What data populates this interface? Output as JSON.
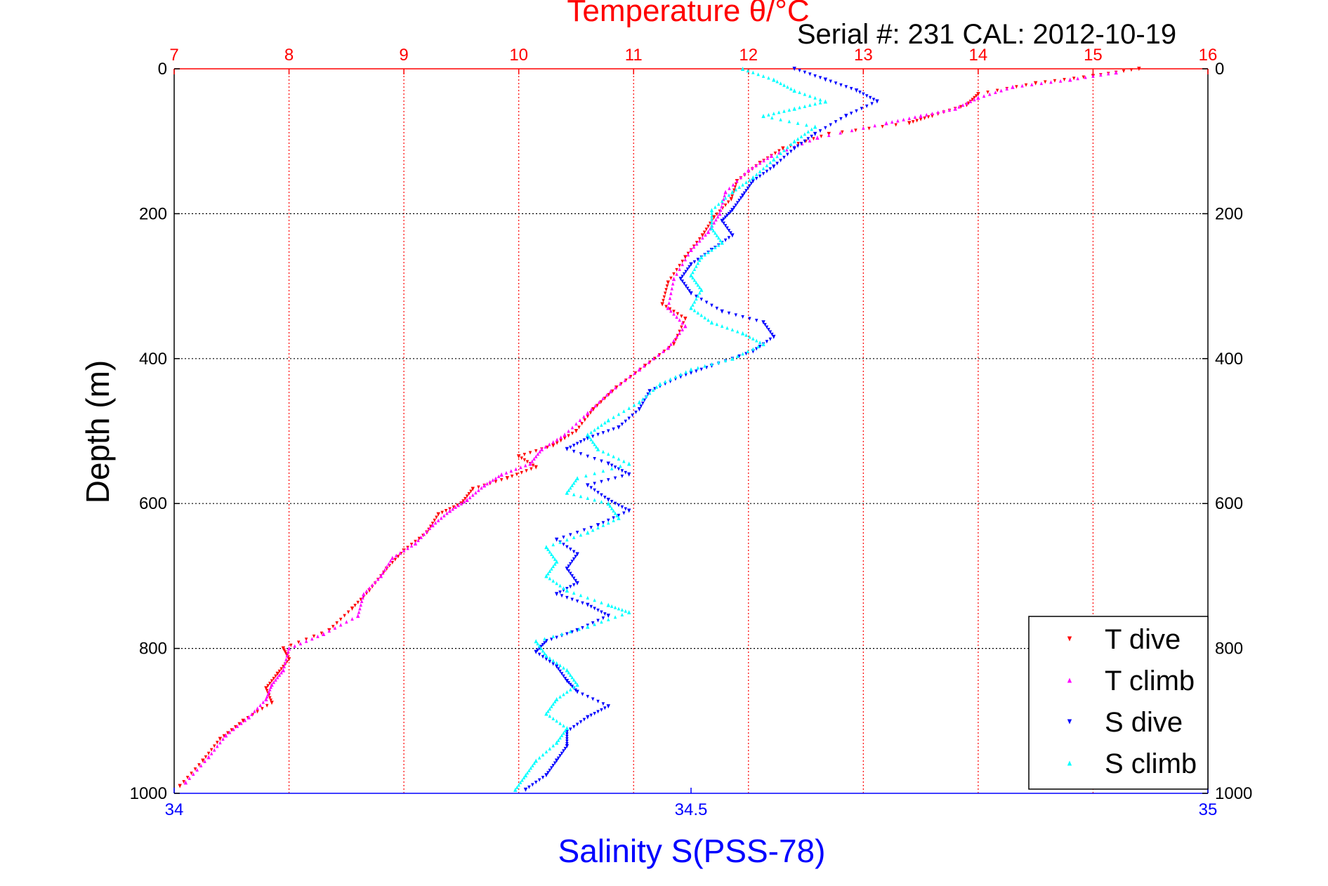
{
  "chart_data": {
    "type": "scatter",
    "title": "Temperature θ/°C",
    "subtitle": "Serial #: 231  CAL: 2012-10-19",
    "ylabel": "Depth (m)",
    "xlabel_bottom": "Salinity S(PSS-78)",
    "y_axis": {
      "range": [
        0,
        1000
      ],
      "reversed": true,
      "ticks": [
        0,
        200,
        400,
        600,
        800,
        1000
      ]
    },
    "x_axis_top": {
      "quantity": "temperature",
      "range": [
        7,
        16
      ],
      "ticks": [
        7,
        8,
        9,
        10,
        11,
        12,
        13,
        14,
        15,
        16
      ],
      "color": "#ff0000",
      "grid": true
    },
    "x_axis_bottom": {
      "quantity": "salinity",
      "range": [
        34,
        35
      ],
      "ticks": [
        34,
        34.5,
        35
      ],
      "tick_labels": [
        "34",
        "34.5",
        "35"
      ],
      "color": "#0000ff"
    },
    "grid": {
      "horizontal": true,
      "vertical_top_axis": true
    },
    "legend_position": "bottom-right",
    "series": [
      {
        "name": "T dive",
        "axis": "temperature",
        "color": "#ff0000",
        "marker": "triangle-down",
        "points": [
          [
            15.4,
            0
          ],
          [
            15.0,
            10
          ],
          [
            14.5,
            20
          ],
          [
            14.0,
            35
          ],
          [
            13.9,
            50
          ],
          [
            13.6,
            65
          ],
          [
            13.4,
            75
          ],
          [
            12.7,
            90
          ],
          [
            12.3,
            110
          ],
          [
            12.1,
            130
          ],
          [
            11.9,
            155
          ],
          [
            11.85,
            180
          ],
          [
            11.7,
            205
          ],
          [
            11.6,
            230
          ],
          [
            11.45,
            260
          ],
          [
            11.3,
            295
          ],
          [
            11.25,
            325
          ],
          [
            11.45,
            345
          ],
          [
            11.35,
            380
          ],
          [
            11.1,
            410
          ],
          [
            10.85,
            440
          ],
          [
            10.65,
            470
          ],
          [
            10.5,
            500
          ],
          [
            10.3,
            520
          ],
          [
            10.0,
            535
          ],
          [
            10.15,
            550
          ],
          [
            9.9,
            565
          ],
          [
            9.6,
            580
          ],
          [
            9.5,
            600
          ],
          [
            9.3,
            615
          ],
          [
            9.2,
            640
          ],
          [
            9.0,
            665
          ],
          [
            8.85,
            690
          ],
          [
            8.7,
            720
          ],
          [
            8.55,
            745
          ],
          [
            8.35,
            775
          ],
          [
            7.95,
            800
          ],
          [
            8.0,
            815
          ],
          [
            7.9,
            835
          ],
          [
            7.8,
            855
          ],
          [
            7.85,
            875
          ],
          [
            7.6,
            900
          ],
          [
            7.4,
            925
          ],
          [
            7.25,
            955
          ],
          [
            7.05,
            990
          ]
        ]
      },
      {
        "name": "T climb",
        "axis": "temperature",
        "color": "#ff00ff",
        "marker": "triangle-up",
        "points": [
          [
            15.2,
            5
          ],
          [
            14.8,
            15
          ],
          [
            14.3,
            25
          ],
          [
            14.0,
            40
          ],
          [
            13.8,
            55
          ],
          [
            13.5,
            65
          ],
          [
            13.2,
            75
          ],
          [
            12.6,
            95
          ],
          [
            12.2,
            120
          ],
          [
            12.0,
            140
          ],
          [
            11.8,
            170
          ],
          [
            11.75,
            200
          ],
          [
            11.65,
            225
          ],
          [
            11.5,
            250
          ],
          [
            11.35,
            290
          ],
          [
            11.3,
            330
          ],
          [
            11.45,
            355
          ],
          [
            11.3,
            385
          ],
          [
            11.05,
            415
          ],
          [
            10.8,
            445
          ],
          [
            10.6,
            475
          ],
          [
            10.4,
            505
          ],
          [
            10.2,
            525
          ],
          [
            10.1,
            545
          ],
          [
            9.85,
            560
          ],
          [
            9.7,
            575
          ],
          [
            9.55,
            595
          ],
          [
            9.4,
            610
          ],
          [
            9.25,
            630
          ],
          [
            9.1,
            655
          ],
          [
            8.9,
            675
          ],
          [
            8.8,
            700
          ],
          [
            8.65,
            725
          ],
          [
            8.6,
            755
          ],
          [
            8.3,
            780
          ],
          [
            8.0,
            800
          ],
          [
            7.95,
            830
          ],
          [
            7.85,
            850
          ],
          [
            7.8,
            870
          ],
          [
            7.65,
            895
          ],
          [
            7.45,
            920
          ],
          [
            7.3,
            950
          ],
          [
            7.1,
            985
          ]
        ]
      },
      {
        "name": "S dive",
        "axis": "salinity",
        "color": "#0000ff",
        "marker": "triangle-down",
        "points": [
          [
            34.6,
            0
          ],
          [
            34.63,
            15
          ],
          [
            34.66,
            30
          ],
          [
            34.68,
            45
          ],
          [
            34.65,
            65
          ],
          [
            34.62,
            90
          ],
          [
            34.6,
            110
          ],
          [
            34.58,
            135
          ],
          [
            34.56,
            155
          ],
          [
            34.55,
            175
          ],
          [
            34.54,
            195
          ],
          [
            34.53,
            210
          ],
          [
            34.54,
            230
          ],
          [
            34.52,
            250
          ],
          [
            34.5,
            270
          ],
          [
            34.49,
            290
          ],
          [
            34.5,
            310
          ],
          [
            34.53,
            335
          ],
          [
            34.57,
            350
          ],
          [
            34.58,
            370
          ],
          [
            34.56,
            390
          ],
          [
            34.52,
            410
          ],
          [
            34.49,
            425
          ],
          [
            34.46,
            445
          ],
          [
            34.45,
            470
          ],
          [
            34.43,
            495
          ],
          [
            34.4,
            510
          ],
          [
            34.38,
            525
          ],
          [
            34.42,
            545
          ],
          [
            34.44,
            560
          ],
          [
            34.4,
            575
          ],
          [
            34.42,
            595
          ],
          [
            34.44,
            610
          ],
          [
            34.41,
            630
          ],
          [
            34.37,
            650
          ],
          [
            34.39,
            670
          ],
          [
            34.38,
            690
          ],
          [
            34.39,
            710
          ],
          [
            34.37,
            725
          ],
          [
            34.4,
            740
          ],
          [
            34.42,
            755
          ],
          [
            34.39,
            775
          ],
          [
            34.36,
            790
          ],
          [
            34.35,
            805
          ],
          [
            34.37,
            825
          ],
          [
            34.38,
            845
          ],
          [
            34.39,
            860
          ],
          [
            34.42,
            880
          ],
          [
            34.4,
            895
          ],
          [
            34.38,
            915
          ],
          [
            34.38,
            935
          ],
          [
            34.37,
            955
          ],
          [
            34.36,
            975
          ],
          [
            34.34,
            995
          ]
        ]
      },
      {
        "name": "S climb",
        "axis": "salinity",
        "color": "#00ffff",
        "marker": "triangle-up",
        "points": [
          [
            34.55,
            0
          ],
          [
            34.58,
            15
          ],
          [
            34.6,
            30
          ],
          [
            34.63,
            45
          ],
          [
            34.6,
            55
          ],
          [
            34.57,
            65
          ],
          [
            34.62,
            80
          ],
          [
            34.6,
            100
          ],
          [
            34.58,
            125
          ],
          [
            34.56,
            150
          ],
          [
            34.54,
            170
          ],
          [
            34.52,
            195
          ],
          [
            34.52,
            220
          ],
          [
            34.53,
            240
          ],
          [
            34.51,
            260
          ],
          [
            34.5,
            285
          ],
          [
            34.51,
            305
          ],
          [
            34.5,
            330
          ],
          [
            34.52,
            350
          ],
          [
            34.55,
            365
          ],
          [
            34.57,
            380
          ],
          [
            34.54,
            400
          ],
          [
            34.5,
            415
          ],
          [
            34.47,
            435
          ],
          [
            34.45,
            460
          ],
          [
            34.42,
            485
          ],
          [
            34.4,
            505
          ],
          [
            34.41,
            525
          ],
          [
            34.44,
            545
          ],
          [
            34.39,
            565
          ],
          [
            34.38,
            585
          ],
          [
            34.42,
            600
          ],
          [
            34.43,
            620
          ],
          [
            34.4,
            640
          ],
          [
            34.36,
            660
          ],
          [
            34.37,
            680
          ],
          [
            34.36,
            700
          ],
          [
            34.38,
            720
          ],
          [
            34.42,
            740
          ],
          [
            34.44,
            750
          ],
          [
            34.4,
            770
          ],
          [
            34.35,
            790
          ],
          [
            34.36,
            810
          ],
          [
            34.38,
            830
          ],
          [
            34.39,
            850
          ],
          [
            34.37,
            870
          ],
          [
            34.36,
            890
          ],
          [
            34.38,
            910
          ],
          [
            34.37,
            930
          ],
          [
            34.35,
            955
          ],
          [
            34.34,
            975
          ],
          [
            34.33,
            995
          ]
        ]
      }
    ]
  }
}
